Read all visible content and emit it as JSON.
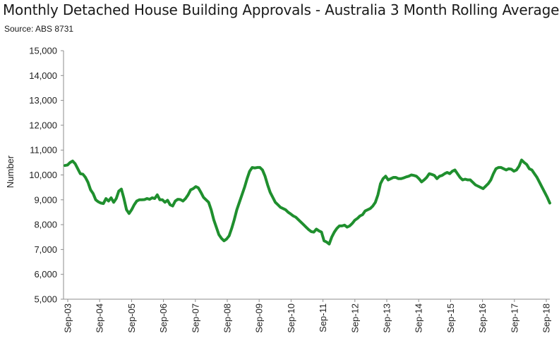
{
  "chart_data": {
    "type": "line",
    "title": "Monthly Detached House Building Approvals - Australia 3 Month Rolling Average",
    "subtitle": "Source: ABS 8731",
    "ylabel": "Number",
    "xlabel": "",
    "ylim": [
      5000,
      15000
    ],
    "y_ticks": [
      "5,000",
      "6,000",
      "7,000",
      "8,000",
      "9,000",
      "10,000",
      "11,000",
      "12,000",
      "13,000",
      "14,000",
      "15,000"
    ],
    "x_ticks": [
      "Sep-03",
      "Sep-04",
      "Sep-05",
      "Sep-06",
      "Sep-07",
      "Sep-08",
      "Sep-09",
      "Sep-10",
      "Sep-11",
      "Sep-12",
      "Sep-13",
      "Sep-14",
      "Sep-15",
      "Sep-16",
      "Sep-17",
      "Sep-18"
    ],
    "grid": false,
    "line_color": "#1f8f2e",
    "series": [
      {
        "values": [
          10380,
          10400,
          10500,
          10560,
          10450,
          10250,
          10050,
          10030,
          9900,
          9700,
          9400,
          9250,
          9000,
          8920,
          8870,
          8850,
          9050,
          8950,
          9080,
          8900,
          9050,
          9350,
          9430,
          9050,
          8600,
          8450,
          8600,
          8800,
          8950,
          9000,
          9000,
          9010,
          9050,
          9020,
          9080,
          9050,
          9200,
          9000,
          9000,
          8900,
          8980,
          8800,
          8750,
          8950,
          9020,
          9010,
          8950,
          9050,
          9200,
          9400,
          9450,
          9530,
          9480,
          9300,
          9100,
          9000,
          8900,
          8600,
          8200,
          7900,
          7600,
          7450,
          7350,
          7420,
          7550,
          7850,
          8200,
          8600,
          8900,
          9200,
          9500,
          9850,
          10150,
          10300,
          10280,
          10300,
          10300,
          10200,
          9950,
          9600,
          9300,
          9100,
          8900,
          8800,
          8700,
          8650,
          8600,
          8500,
          8430,
          8350,
          8300,
          8200,
          8100,
          8000,
          7900,
          7800,
          7720,
          7700,
          7820,
          7750,
          7700,
          7350,
          7300,
          7220,
          7500,
          7700,
          7850,
          7950,
          7950,
          7980,
          7900,
          7950,
          8050,
          8180,
          8250,
          8350,
          8400,
          8550,
          8600,
          8650,
          8750,
          8900,
          9200,
          9650,
          9850,
          9950,
          9800,
          9850,
          9900,
          9900,
          9850,
          9850,
          9880,
          9920,
          9950,
          10000,
          9980,
          9950,
          9850,
          9720,
          9800,
          9900,
          10050,
          10020,
          9980,
          9850,
          9950,
          9980,
          10050,
          10100,
          10050,
          10150,
          10200,
          10050,
          9900,
          9800,
          9830,
          9800,
          9800,
          9700,
          9600,
          9550,
          9500,
          9450,
          9550,
          9650,
          9800,
          10050,
          10250,
          10300,
          10300,
          10250,
          10200,
          10250,
          10230,
          10150,
          10200,
          10350,
          10600,
          10500,
          10420,
          10250,
          10200,
          10050,
          9900,
          9700,
          9500,
          9300,
          9100,
          8870
        ]
      }
    ]
  }
}
